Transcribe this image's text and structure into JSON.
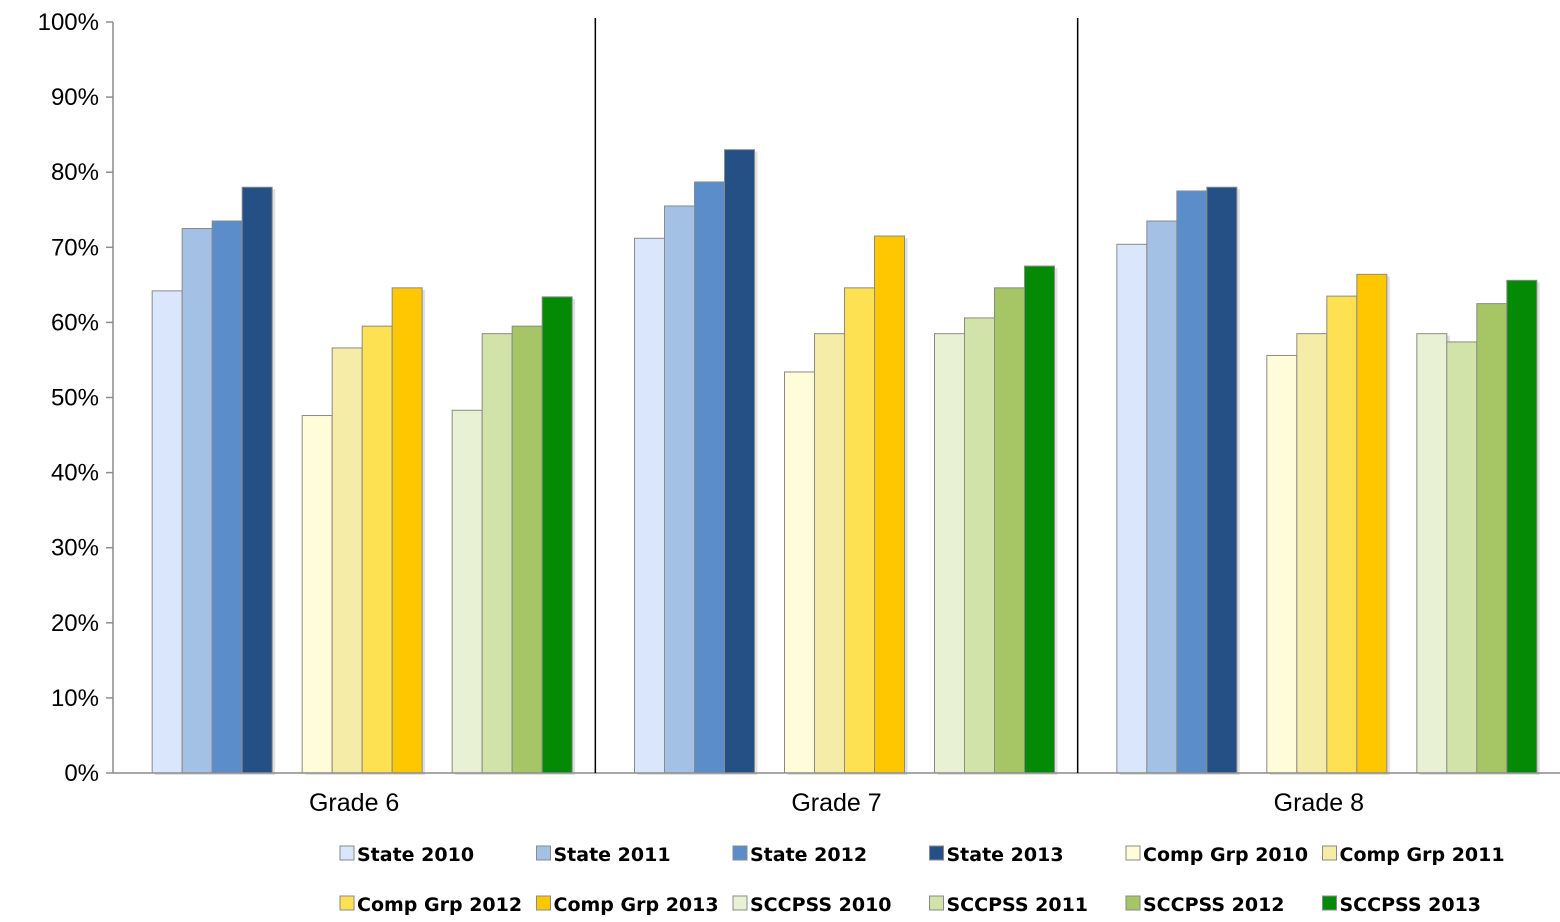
{
  "chart_data": {
    "type": "bar",
    "categories": [
      "Grade 6",
      "Grade 7",
      "Grade 8"
    ],
    "ylim": [
      0,
      100
    ],
    "y_tick_labels": [
      "0%",
      "10%",
      "20%",
      "30%",
      "40%",
      "50%",
      "60%",
      "70%",
      "80%",
      "90%",
      "100%"
    ],
    "grid": false,
    "legend_position": "bottom",
    "series": [
      {
        "name": "State 2010",
        "color": "#d9e6fb",
        "values": [
          64.2,
          71.2,
          70.4
        ]
      },
      {
        "name": "State 2011",
        "color": "#a3c0e5",
        "values": [
          72.5,
          75.5,
          73.5
        ]
      },
      {
        "name": "State 2012",
        "color": "#5b8dcb",
        "values": [
          73.5,
          78.7,
          77.5
        ]
      },
      {
        "name": "State 2013",
        "color": "#255086",
        "values": [
          78.0,
          83.0,
          78.0
        ]
      },
      {
        "name": "Comp Grp 2010",
        "color": "#fffcda",
        "values": [
          47.6,
          53.4,
          55.6
        ]
      },
      {
        "name": "Comp Grp 2011",
        "color": "#f5eda7",
        "values": [
          56.6,
          58.5,
          58.5
        ]
      },
      {
        "name": "Comp Grp 2012",
        "color": "#fde152",
        "values": [
          59.5,
          64.6,
          63.5
        ]
      },
      {
        "name": "Comp Grp 2013",
        "color": "#fec700",
        "values": [
          64.6,
          71.5,
          66.4
        ]
      },
      {
        "name": "SCCPSS 2010",
        "color": "#e8f1d3",
        "values": [
          48.3,
          58.5,
          58.5
        ]
      },
      {
        "name": "SCCPSS 2011",
        "color": "#d2e3aa",
        "values": [
          58.5,
          60.6,
          57.4
        ]
      },
      {
        "name": "SCCPSS 2012",
        "color": "#a6c565",
        "values": [
          59.5,
          64.6,
          62.5
        ]
      },
      {
        "name": "SCCPSS 2013",
        "color": "#058a05",
        "values": [
          63.4,
          67.5,
          65.6
        ]
      }
    ]
  }
}
